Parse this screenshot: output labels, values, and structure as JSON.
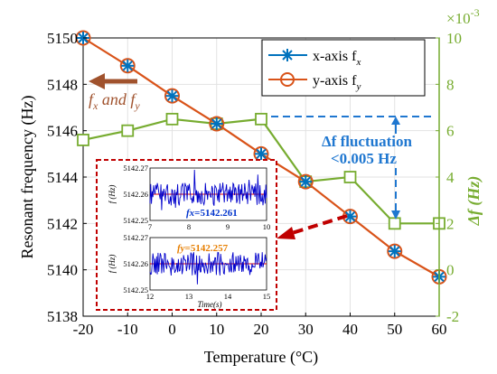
{
  "chart_data": {
    "type": "line",
    "xlabel": "Temperature (°C)",
    "ylabel": "Resonant frequency (Hz)",
    "y2label": "Δf (Hz)",
    "y2_multiplier": "×10-3",
    "x": [
      -20,
      -10,
      0,
      10,
      20,
      30,
      40,
      50,
      60
    ],
    "xlim": [
      -20,
      60
    ],
    "ylim": [
      5138,
      5150
    ],
    "y2lim": [
      -2,
      10
    ],
    "x_ticks": [
      "-20",
      "-10",
      "0",
      "10",
      "20",
      "30",
      "40",
      "50",
      "60"
    ],
    "y_ticks": [
      "5138",
      "5140",
      "5142",
      "5144",
      "5146",
      "5148",
      "5150"
    ],
    "y2_ticks": [
      "-2",
      "0",
      "2",
      "4",
      "6",
      "8",
      "10"
    ],
    "grid": true,
    "series": [
      {
        "name": "x-axis f",
        "subscript": "x",
        "axis": "left",
        "color": "#0072bd",
        "marker": "asterisk",
        "values": [
          5150,
          5148.8,
          5147.5,
          5146.3,
          5145,
          5143.8,
          5142.3,
          5140.8,
          5139.7
        ]
      },
      {
        "name": "y-axis f",
        "subscript": "y",
        "axis": "left",
        "color": "#d95319",
        "marker": "circle",
        "values": [
          5150,
          5148.8,
          5147.5,
          5146.3,
          5145,
          5143.8,
          5142.3,
          5140.8,
          5139.7
        ]
      },
      {
        "name": "Δf",
        "axis": "right",
        "color": "#77ac30",
        "marker": "square",
        "values": [
          5.6,
          6.0,
          6.5,
          6.3,
          6.5,
          3.8,
          4.0,
          2.0,
          2.0
        ]
      }
    ],
    "annotations": {
      "left_arrow_label": {
        "f": "f",
        "x_sub": "x",
        "and": " and ",
        "y_sub": "y"
      },
      "fluctuation_line1": "Δf  fluctuation",
      "fluctuation_line2": "<0.005 Hz"
    },
    "inset": {
      "top": {
        "ylabel": "f (Hz)",
        "y_ticks": [
          "5142.25",
          "5142.26",
          "5142.27"
        ],
        "x_ticks": [
          "7",
          "8",
          "9",
          "10"
        ],
        "label_prefix": "fx",
        "label_value": "=5142.261",
        "label_color": "#0033cc"
      },
      "bottom": {
        "ylabel": "f (Hz)",
        "y_ticks": [
          "5142.25",
          "5142.26",
          "5142.27"
        ],
        "x_ticks": [
          "12",
          "13",
          "14",
          "15"
        ],
        "xlabel": "Time(s)",
        "label_prefix": "fy",
        "label_value": "=5142.257",
        "label_color": "#e67e00"
      }
    }
  }
}
